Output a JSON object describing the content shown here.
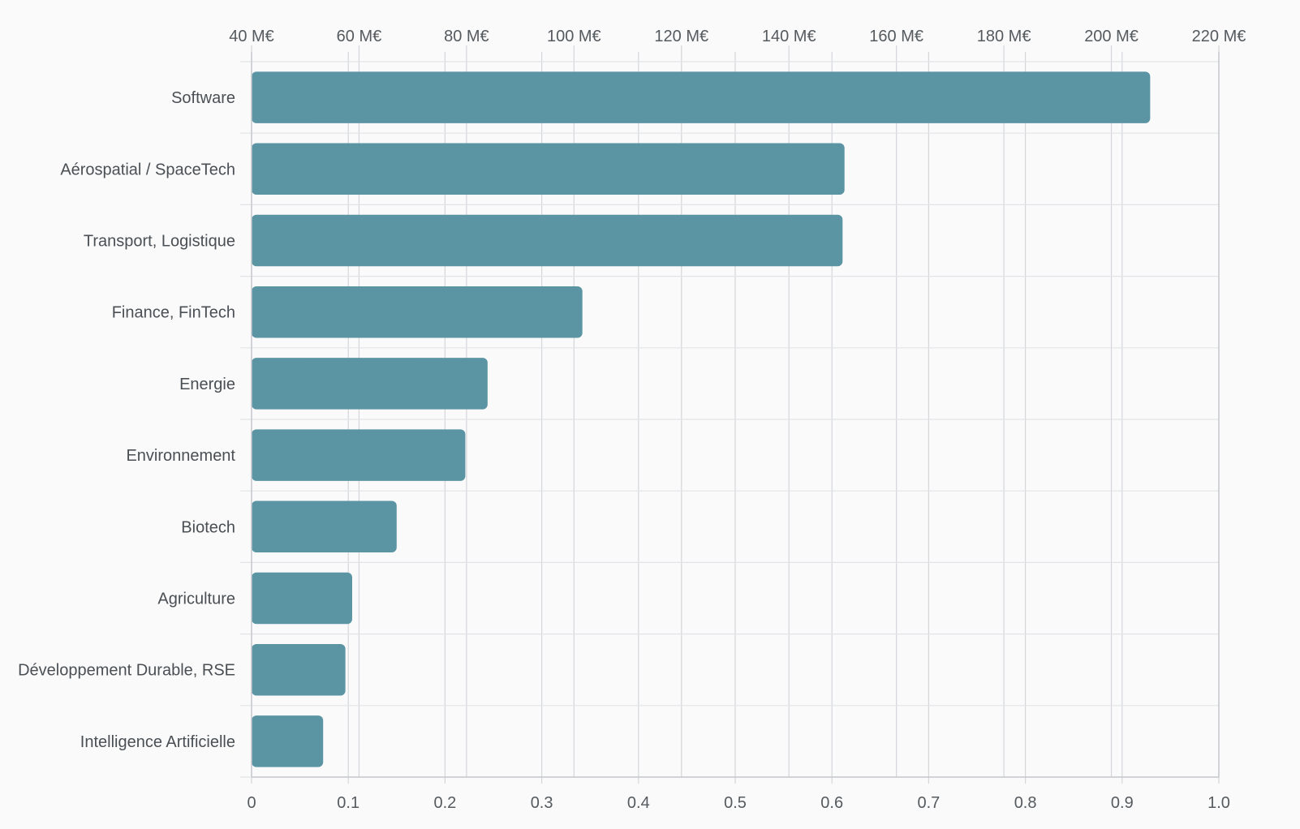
{
  "chart_data": {
    "type": "bar",
    "orientation": "horizontal",
    "categories": [
      "Software",
      "Aérospatial / SpaceTech",
      "Transport, Logistique",
      "Finance, FinTech",
      "Energie",
      "Environnement",
      "Biotech",
      "Agriculture",
      "Développement Durable, RSE",
      "Intelligence Artificielle"
    ],
    "values": [
      0.929,
      0.613,
      0.611,
      0.342,
      0.244,
      0.221,
      0.15,
      0.104,
      0.097,
      0.074
    ],
    "xlim": [
      0,
      1.0
    ],
    "bottom_ticks": [
      "0",
      "0.1",
      "0.2",
      "0.3",
      "0.4",
      "0.5",
      "0.6",
      "0.7",
      "0.8",
      "0.9",
      "1.0"
    ],
    "top_axis": {
      "range": [
        40,
        220
      ],
      "unit": "M€",
      "ticks": [
        "40 M€",
        "60 M€",
        "80 M€",
        "100 M€",
        "120 M€",
        "140 M€",
        "160 M€",
        "180 M€",
        "200 M€",
        "220 M€"
      ]
    },
    "grid": true,
    "legend": "none",
    "title": "",
    "xlabel": "",
    "ylabel": "",
    "colors": {
      "bar": "#5b94a3",
      "grid": "#d4d6d9",
      "text": "#555a5e",
      "background": "#fafafb"
    }
  }
}
